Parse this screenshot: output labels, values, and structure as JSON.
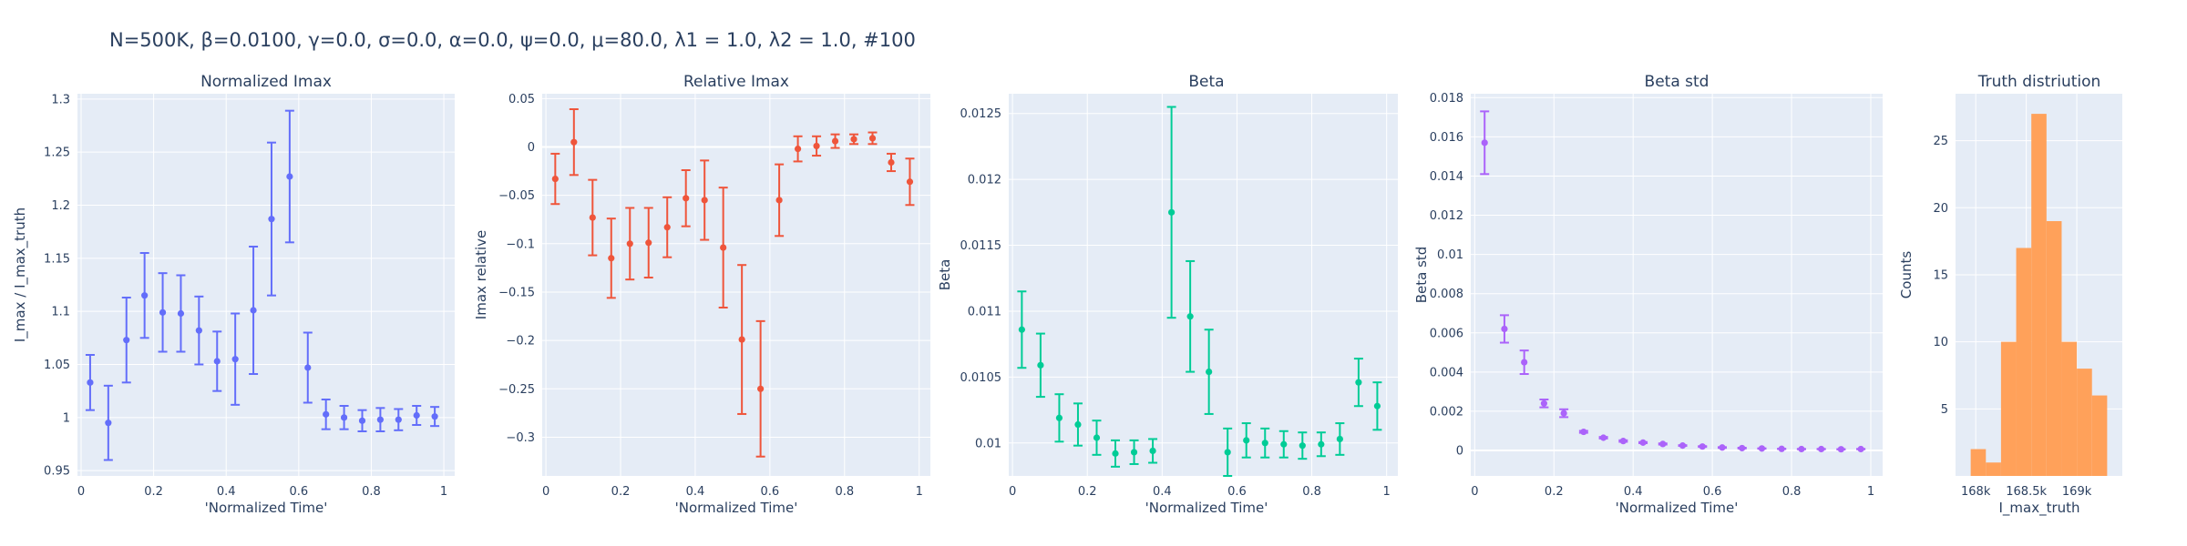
{
  "figure_title": "N=500K, β=0.0100, γ=0.0, σ=0.0,  α=0.0, ψ=0.0, μ=80.0, λ1 = 1.0, λ2 = 1.0, #100",
  "chart_data": [
    {
      "type": "scatter",
      "title": "Normalized Imax",
      "xlabel": "'Normalized Time'",
      "ylabel": "I_max / I_max_truth",
      "color": "#636efa",
      "xlim": [
        -0.01,
        1.03
      ],
      "ylim": [
        0.945,
        1.305
      ],
      "xticks": [
        0,
        0.2,
        0.4,
        0.6,
        0.8,
        1
      ],
      "xtick_labels": [
        "0",
        "0.2",
        "0.4",
        "0.6",
        "0.8",
        "1"
      ],
      "yticks": [
        0.95,
        1,
        1.05,
        1.1,
        1.15,
        1.2,
        1.25,
        1.3
      ],
      "ytick_labels": [
        "0.95",
        "1",
        "1.05",
        "1.1",
        "1.15",
        "1.2",
        "1.25",
        "1.3"
      ],
      "x": [
        0.025,
        0.075,
        0.125,
        0.175,
        0.225,
        0.275,
        0.325,
        0.375,
        0.425,
        0.475,
        0.525,
        0.575,
        0.625,
        0.675,
        0.725,
        0.775,
        0.825,
        0.875,
        0.925,
        0.975
      ],
      "y": [
        1.033,
        0.995,
        1.073,
        1.115,
        1.099,
        1.098,
        1.082,
        1.053,
        1.055,
        1.101,
        1.187,
        1.227,
        1.047,
        1.003,
        1.0,
        0.997,
        0.998,
        0.998,
        1.002,
        1.001
      ],
      "err": [
        0.026,
        0.035,
        0.04,
        0.04,
        0.037,
        0.036,
        0.032,
        0.028,
        0.043,
        0.06,
        0.072,
        0.062,
        0.033,
        0.014,
        0.011,
        0.01,
        0.011,
        0.01,
        0.009,
        0.009
      ]
    },
    {
      "type": "scatter",
      "title": "Relative Imax",
      "xlabel": "'Normalized Time'",
      "ylabel": "Imax relative",
      "color": "#ef553b",
      "xlim": [
        -0.01,
        1.03
      ],
      "ylim": [
        -0.34,
        0.055
      ],
      "xticks": [
        0,
        0.2,
        0.4,
        0.6,
        0.8,
        1
      ],
      "xtick_labels": [
        "0",
        "0.2",
        "0.4",
        "0.6",
        "0.8",
        "1"
      ],
      "yticks": [
        -0.3,
        -0.25,
        -0.2,
        -0.15,
        -0.1,
        -0.05,
        0,
        0.05
      ],
      "ytick_labels": [
        "−0.3",
        "−0.25",
        "−0.2",
        "−0.15",
        "−0.1",
        "−0.05",
        "0",
        "0.05"
      ],
      "x": [
        0.025,
        0.075,
        0.125,
        0.175,
        0.225,
        0.275,
        0.325,
        0.375,
        0.425,
        0.475,
        0.525,
        0.575,
        0.625,
        0.675,
        0.725,
        0.775,
        0.825,
        0.875,
        0.925,
        0.975
      ],
      "y": [
        -0.033,
        0.005,
        -0.073,
        -0.115,
        -0.1,
        -0.099,
        -0.083,
        -0.053,
        -0.055,
        -0.104,
        -0.199,
        -0.25,
        -0.055,
        -0.002,
        0.001,
        0.006,
        0.008,
        0.009,
        -0.016,
        -0.036
      ],
      "err": [
        0.026,
        0.034,
        0.039,
        0.041,
        0.037,
        0.036,
        0.031,
        0.029,
        0.041,
        0.062,
        0.077,
        0.07,
        0.037,
        0.013,
        0.01,
        0.007,
        0.005,
        0.006,
        0.009,
        0.024
      ]
    },
    {
      "type": "scatter",
      "title": "Beta",
      "xlabel": "'Normalized Time'",
      "ylabel": "Beta",
      "color": "#00cc96",
      "xlim": [
        -0.01,
        1.03
      ],
      "ylim": [
        0.00975,
        0.01265
      ],
      "xticks": [
        0,
        0.2,
        0.4,
        0.6,
        0.8,
        1
      ],
      "xtick_labels": [
        "0",
        "0.2",
        "0.4",
        "0.6",
        "0.8",
        "1"
      ],
      "yticks": [
        0.01,
        0.0105,
        0.011,
        0.0115,
        0.012,
        0.0125
      ],
      "ytick_labels": [
        "0.01",
        "0.0105",
        "0.011",
        "0.0115",
        "0.012",
        "0.0125"
      ],
      "x": [
        0.025,
        0.075,
        0.125,
        0.175,
        0.225,
        0.275,
        0.325,
        0.375,
        0.425,
        0.475,
        0.525,
        0.575,
        0.625,
        0.675,
        0.725,
        0.775,
        0.825,
        0.875,
        0.925,
        0.975
      ],
      "y": [
        0.01086,
        0.01059,
        0.01019,
        0.01014,
        0.01004,
        0.00992,
        0.00993,
        0.00994,
        0.01175,
        0.01096,
        0.01054,
        0.00993,
        0.01002,
        0.01,
        0.00999,
        0.00998,
        0.00999,
        0.01003,
        0.01046,
        0.01028
      ],
      "err": [
        0.00029,
        0.00024,
        0.00018,
        0.00016,
        0.00013,
        0.0001,
        9e-05,
        9e-05,
        0.0008,
        0.00042,
        0.00032,
        0.00018,
        0.00013,
        0.00011,
        0.0001,
        0.0001,
        9e-05,
        0.00012,
        0.00018,
        0.00018
      ]
    },
    {
      "type": "scatter",
      "title": "Beta std",
      "xlabel": "'Normalized Time'",
      "ylabel": "Beta std",
      "color": "#ab63fa",
      "xlim": [
        -0.01,
        1.03
      ],
      "ylim": [
        -0.0013,
        0.0182
      ],
      "xticks": [
        0,
        0.2,
        0.4,
        0.6,
        0.8,
        1
      ],
      "xtick_labels": [
        "0",
        "0.2",
        "0.4",
        "0.6",
        "0.8",
        "1"
      ],
      "yticks": [
        0,
        0.002,
        0.004,
        0.006,
        0.008,
        0.01,
        0.012,
        0.014,
        0.016,
        0.018
      ],
      "ytick_labels": [
        "0",
        "0.002",
        "0.004",
        "0.006",
        "0.008",
        "0.01",
        "0.012",
        "0.014",
        "0.016",
        "0.018"
      ],
      "x": [
        0.025,
        0.075,
        0.125,
        0.175,
        0.225,
        0.275,
        0.325,
        0.375,
        0.425,
        0.475,
        0.525,
        0.575,
        0.625,
        0.675,
        0.725,
        0.775,
        0.825,
        0.875,
        0.925,
        0.975
      ],
      "y": [
        0.0157,
        0.0062,
        0.0045,
        0.0024,
        0.0019,
        0.00095,
        0.00065,
        0.00048,
        0.0004,
        0.00033,
        0.00025,
        0.0002,
        0.00015,
        0.00012,
        0.0001,
        8e-05,
        7e-05,
        7e-05,
        6e-05,
        7e-05
      ],
      "err": [
        0.0016,
        0.0007,
        0.0006,
        0.0002,
        0.0002,
        5e-05,
        4e-05,
        4e-05,
        3e-05,
        3e-05,
        2e-05,
        2e-05,
        2e-05,
        2e-05,
        1e-05,
        1e-05,
        1e-05,
        1e-05,
        1e-05,
        1e-05
      ]
    },
    {
      "type": "bar",
      "title": "Truth distriution",
      "xlabel": "I_max_truth",
      "ylabel": "Counts",
      "color": "#ffa15a",
      "xlim": [
        167800,
        169450
      ],
      "ylim": [
        0,
        28.5
      ],
      "xticks": [
        168000,
        168500,
        169000
      ],
      "xtick_labels": [
        "168k",
        "168.5k",
        "169k"
      ],
      "yticks": [
        5,
        10,
        15,
        20,
        25
      ],
      "ytick_labels": [
        "5",
        "10",
        "15",
        "20",
        "25"
      ],
      "bins": [
        [
          167800,
          167950
        ],
        [
          167950,
          168100
        ],
        [
          168100,
          168250
        ],
        [
          168250,
          168400
        ],
        [
          168400,
          168550
        ],
        [
          168550,
          168700
        ],
        [
          168700,
          168850
        ],
        [
          168850,
          169000
        ],
        [
          169000,
          169150
        ],
        [
          169150,
          169300
        ],
        [
          169300,
          169450
        ]
      ],
      "values": [
        0,
        2,
        1,
        10,
        17,
        27,
        19,
        10,
        8,
        6,
        0
      ]
    }
  ]
}
